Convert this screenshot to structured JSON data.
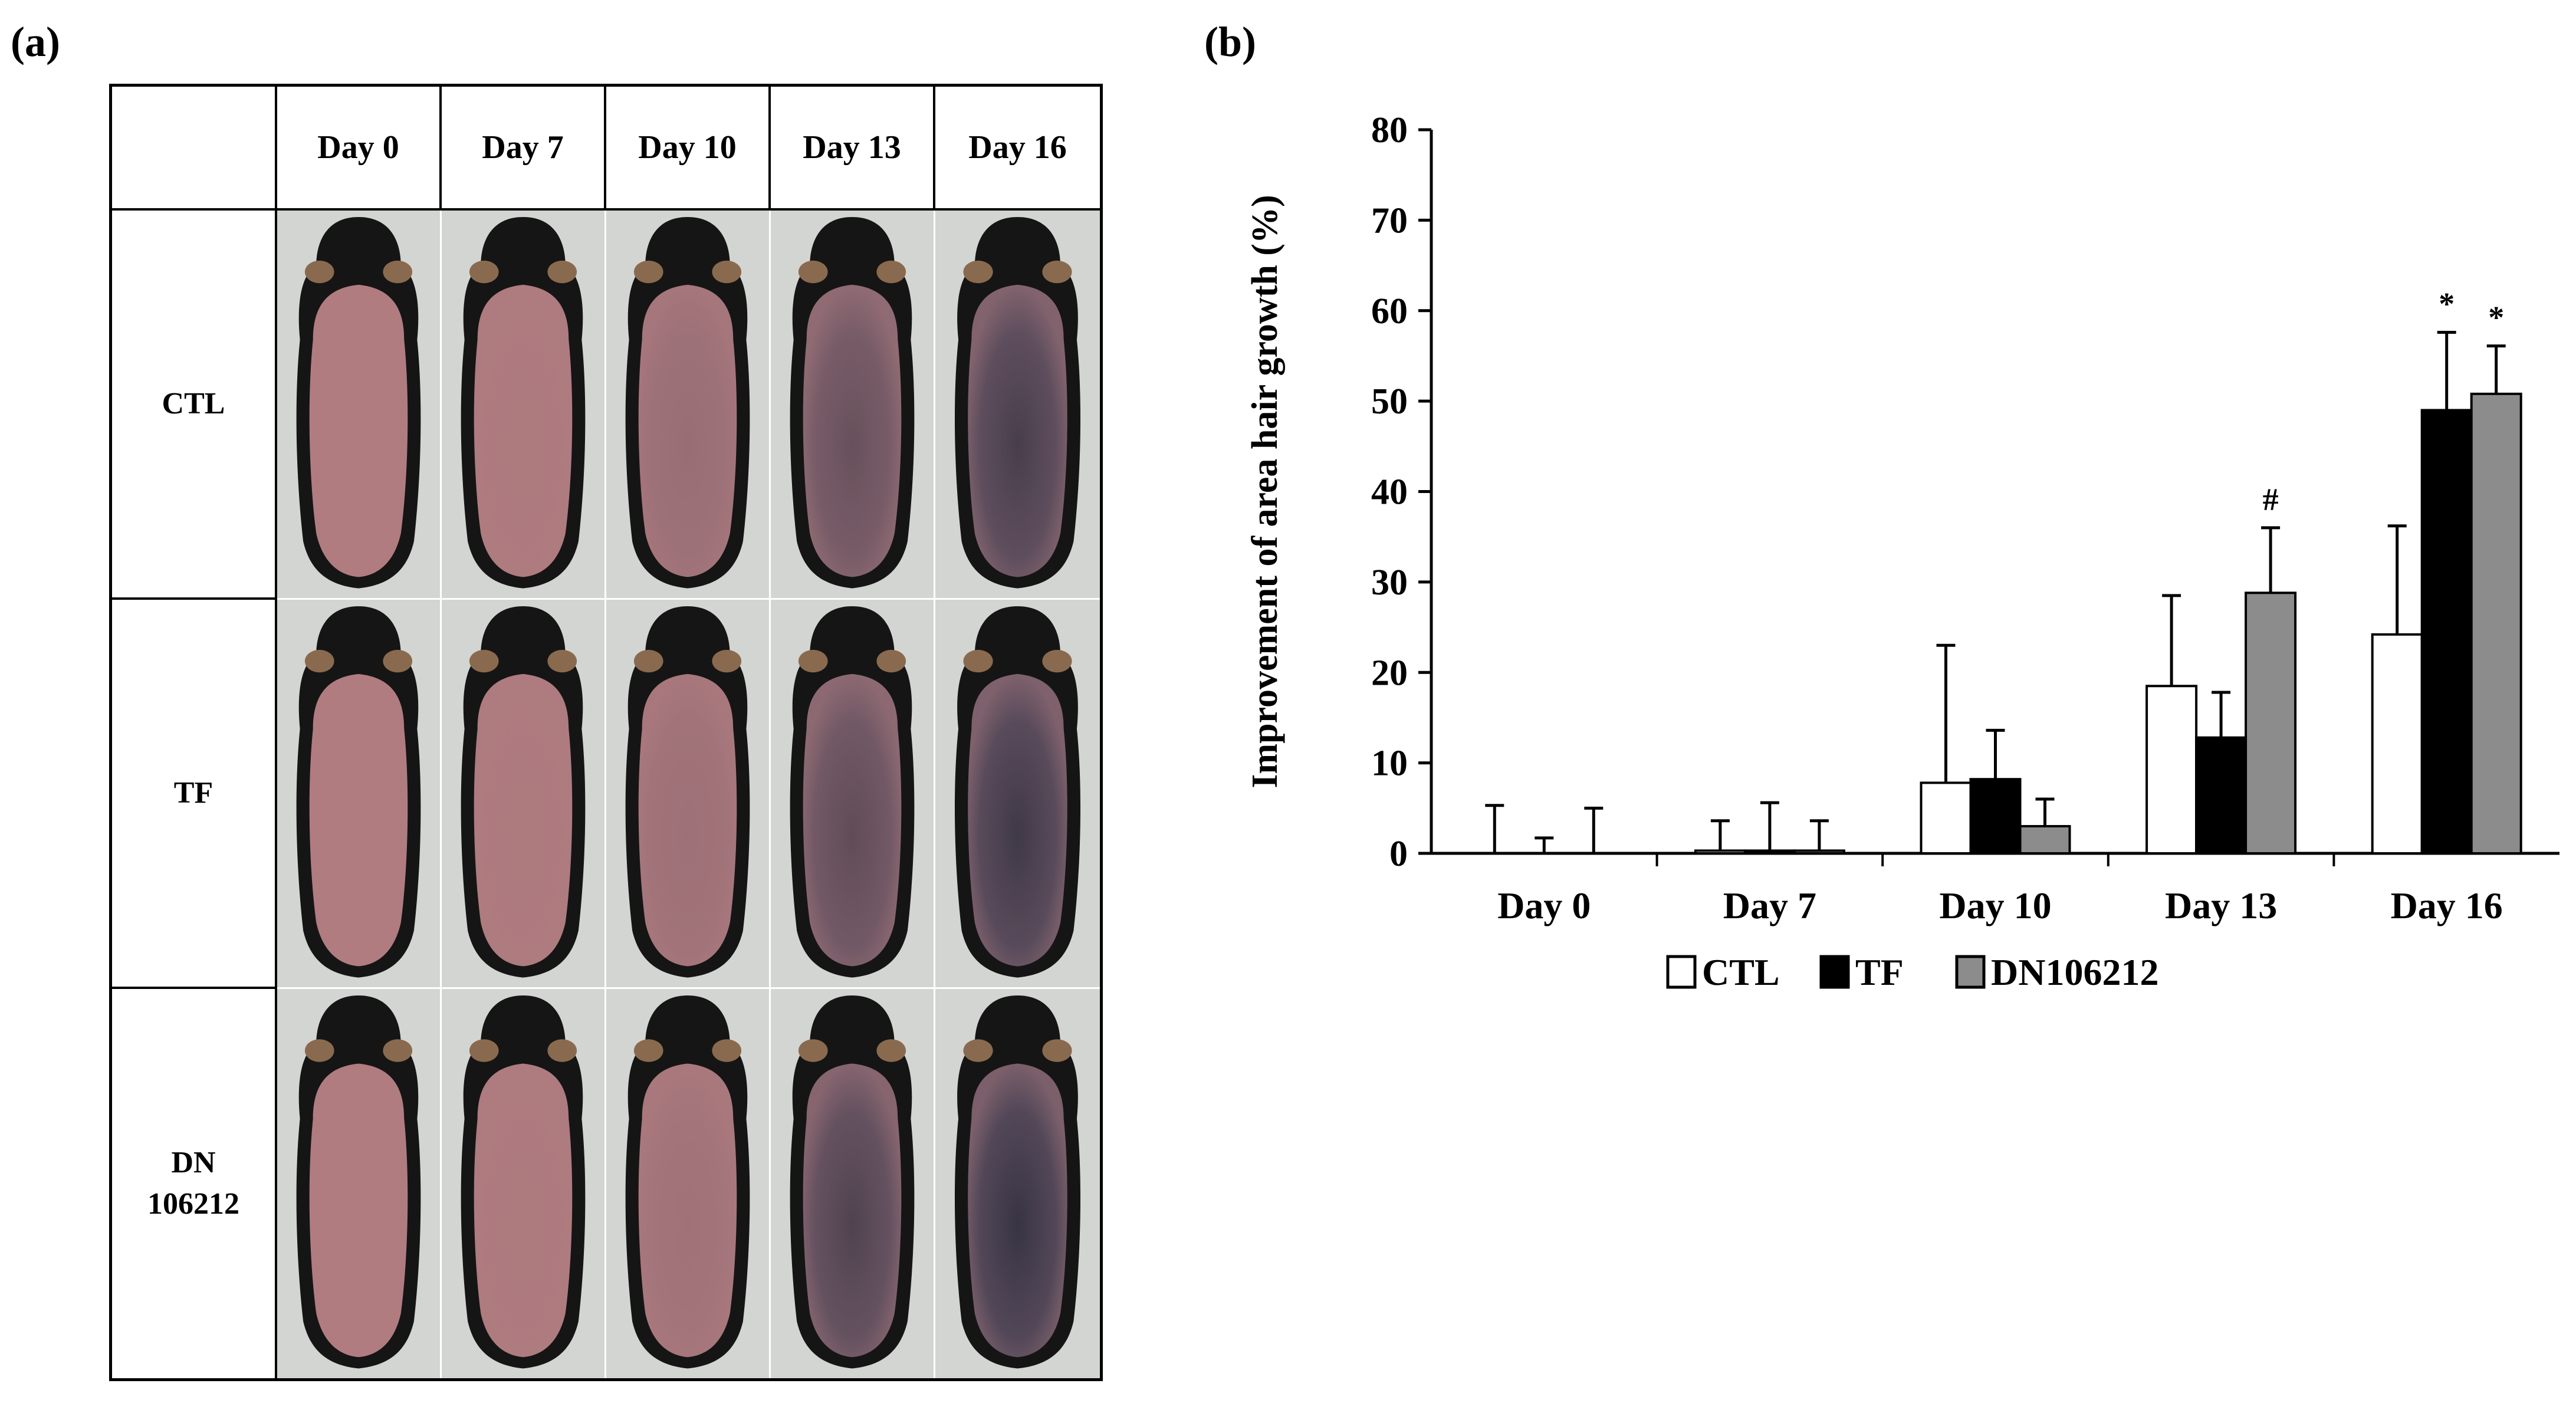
{
  "panels": {
    "a": "(a)",
    "b": "(b)"
  },
  "photo_grid": {
    "corner": "",
    "columns": [
      "Day 0",
      "Day 7",
      "Day 10",
      "Day 13",
      "Day 16"
    ],
    "rows": [
      {
        "label": "CTL",
        "darkness": [
          0.0,
          0.02,
          0.15,
          0.45,
          0.65
        ]
      },
      {
        "label": "TF",
        "darkness": [
          0.0,
          0.02,
          0.12,
          0.5,
          0.7
        ]
      },
      {
        "label": "DN\n106212",
        "darkness": [
          0.0,
          0.02,
          0.1,
          0.6,
          0.75
        ]
      }
    ]
  },
  "chart_data": {
    "type": "bar",
    "title": "",
    "xlabel": "",
    "ylabel": "Improvement of area hair growth (%)",
    "ylim": [
      0,
      80
    ],
    "yticks": [
      "0",
      "10",
      "20",
      "30",
      "40",
      "50",
      "60",
      "70",
      "80"
    ],
    "categories": [
      "Day 0",
      "Day 7",
      "Day 10",
      "Day 13",
      "Day 16"
    ],
    "series": [
      {
        "name": "CTL",
        "color": "#ffffff",
        "values": [
          0,
          0.3,
          7.8,
          18.5,
          24.2
        ],
        "errors": [
          5.3,
          3.3,
          15.2,
          10.0,
          12.0
        ]
      },
      {
        "name": "TF",
        "color": "#000000",
        "values": [
          0,
          0.3,
          8.2,
          12.8,
          49.0
        ],
        "errors": [
          1.7,
          5.3,
          5.4,
          5.0,
          8.6
        ]
      },
      {
        "name": "DN106212",
        "color": "#8c8c8c",
        "values": [
          0,
          0.3,
          3.0,
          28.8,
          50.8
        ],
        "errors": [
          5.0,
          3.3,
          3.0,
          7.2,
          5.3
        ]
      }
    ],
    "annotations": [
      {
        "category": "Day 13",
        "series": "DN106212",
        "text": "#"
      },
      {
        "category": "Day 16",
        "series": "TF",
        "text": "*"
      },
      {
        "category": "Day 16",
        "series": "DN106212",
        "text": "*"
      }
    ]
  }
}
